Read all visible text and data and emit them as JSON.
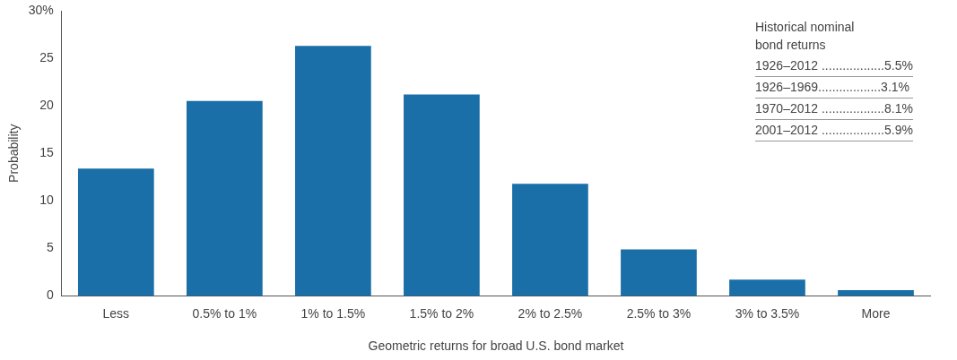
{
  "chart_data": {
    "type": "bar",
    "categories": [
      "Less",
      "0.5% to 1%",
      "1% to 1.5%",
      "1.5% to 2%",
      "2% to 2.5%",
      "2.5% to 3%",
      "3% to 3.5%",
      "More"
    ],
    "values": [
      13.4,
      20.5,
      26.3,
      21.2,
      11.8,
      4.9,
      1.7,
      0.6
    ],
    "color": "#1a6fa8",
    "xlabel": "Geometric returns for broad U.S. bond market",
    "ylabel": "Probability",
    "ylim": [
      0,
      30
    ],
    "yticks": [
      0,
      5,
      10,
      15,
      20,
      25,
      {
        "value": 30,
        "label": "30%"
      }
    ],
    "grid": false,
    "legend": false,
    "annotations": [
      "Historical nominal\nbond returns",
      "1926–2012 ..................5.5%",
      "1926–1969..................3.1%",
      "1970–2012 ..................8.1%",
      "2001–2012 ..................5.9%"
    ]
  }
}
